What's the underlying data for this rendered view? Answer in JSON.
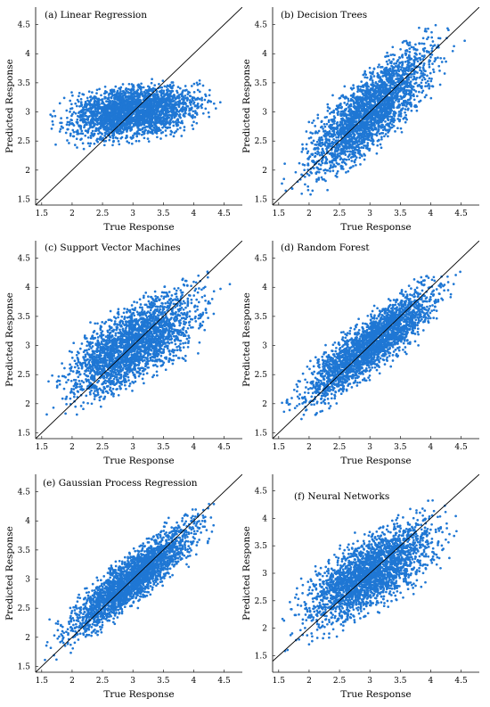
{
  "colors": {
    "points": "#1f77d4",
    "line": "#000000",
    "axis": "#000000"
  },
  "chart_data": [
    {
      "type": "scatter",
      "title": "(a) Linear Regression",
      "xlabel": "True Response",
      "ylabel": "Predicted Response",
      "xlim": [
        1.4,
        4.8
      ],
      "ylim": [
        1.4,
        4.8
      ],
      "xticks": [
        "1.5",
        "2",
        "2.5",
        "3",
        "3.5",
        "4",
        "4.5"
      ],
      "yticks": [
        "1.5",
        "2",
        "2.5",
        "3",
        "3.5",
        "4",
        "4.5"
      ],
      "reference_line": "y = x",
      "grid": false,
      "cloud": {
        "x_range": [
          1.55,
          4.6
        ],
        "x_center": 3.0,
        "slope": 0.12,
        "y_at_center": 3.0,
        "y_spread": 0.2,
        "y_min": 2.1,
        "y_max": 3.95
      }
    },
    {
      "type": "scatter",
      "title": "(b) Decision Trees",
      "xlabel": "True Response",
      "ylabel": "Predicted Response",
      "xlim": [
        1.4,
        4.8
      ],
      "ylim": [
        1.4,
        4.8
      ],
      "xticks": [
        "1.5",
        "2",
        "2.5",
        "3",
        "3.5",
        "4",
        "4.5"
      ],
      "yticks": [
        "1.5",
        "2",
        "2.5",
        "3",
        "3.5",
        "4",
        "4.5"
      ],
      "reference_line": "y = x",
      "grid": false,
      "cloud": {
        "x_range": [
          1.55,
          4.6
        ],
        "x_center": 3.0,
        "slope": 0.85,
        "y_at_center": 3.0,
        "y_spread": 0.3,
        "y_min": 1.55,
        "y_max": 4.5
      }
    },
    {
      "type": "scatter",
      "title": "(c) Support Vector Machines",
      "xlabel": "True Response",
      "ylabel": "Predicted Response",
      "xlim": [
        1.4,
        4.8
      ],
      "ylim": [
        1.4,
        4.8
      ],
      "xticks": [
        "1.5",
        "2",
        "2.5",
        "3",
        "3.5",
        "4",
        "4.5"
      ],
      "yticks": [
        "1.5",
        "2",
        "2.5",
        "3",
        "3.5",
        "4",
        "4.5"
      ],
      "reference_line": "y = x",
      "grid": false,
      "cloud": {
        "x_range": [
          1.55,
          4.6
        ],
        "x_center": 3.0,
        "slope": 0.55,
        "y_at_center": 3.0,
        "y_spread": 0.3,
        "y_min": 1.6,
        "y_max": 4.35
      }
    },
    {
      "type": "scatter",
      "title": "(d) Random Forest",
      "xlabel": "True Response",
      "ylabel": "Predicted Response",
      "xlim": [
        1.4,
        4.8
      ],
      "ylim": [
        1.4,
        4.8
      ],
      "xticks": [
        "1.5",
        "2",
        "2.5",
        "3",
        "3.5",
        "4",
        "4.5"
      ],
      "yticks": [
        "1.5",
        "2",
        "2.5",
        "3",
        "3.5",
        "4",
        "4.5"
      ],
      "reference_line": "y = x",
      "grid": false,
      "cloud": {
        "x_range": [
          1.55,
          4.6
        ],
        "x_center": 3.0,
        "slope": 0.78,
        "y_at_center": 3.0,
        "y_spread": 0.22,
        "y_min": 1.6,
        "y_max": 4.3
      }
    },
    {
      "type": "scatter",
      "title": "(e) Gaussian Process Regression",
      "xlabel": "True Response",
      "ylabel": "Predicted Response",
      "xlim": [
        1.4,
        4.8
      ],
      "ylim": [
        1.4,
        4.8
      ],
      "xticks": [
        "1.5",
        "2",
        "2.5",
        "3",
        "3.5",
        "4",
        "4.5"
      ],
      "yticks": [
        "1.5",
        "2",
        "2.5",
        "3",
        "3.5",
        "4",
        "4.5"
      ],
      "reference_line": "y = x",
      "grid": false,
      "cloud": {
        "x_range": [
          1.55,
          4.6
        ],
        "x_center": 3.0,
        "slope": 0.8,
        "y_at_center": 3.0,
        "y_spread": 0.2,
        "y_min": 1.6,
        "y_max": 4.3
      }
    },
    {
      "type": "scatter",
      "title": "(f) Neural Networks",
      "xlabel": "True Response",
      "ylabel": "Predicted Response",
      "xlim": [
        1.4,
        4.8
      ],
      "ylim": [
        1.2,
        4.8
      ],
      "xticks": [
        "1.5",
        "2",
        "2.5",
        "3",
        "3.5",
        "4",
        "4.5"
      ],
      "yticks": [
        "1.5",
        "2",
        "2.5",
        "3",
        "3.5",
        "4",
        "4.5"
      ],
      "reference_line": "y = x",
      "grid": false,
      "cloud": {
        "x_range": [
          1.55,
          4.6
        ],
        "x_center": 3.0,
        "slope": 0.6,
        "y_at_center": 3.0,
        "y_spread": 0.3,
        "y_min": 1.3,
        "y_max": 4.45
      }
    }
  ]
}
